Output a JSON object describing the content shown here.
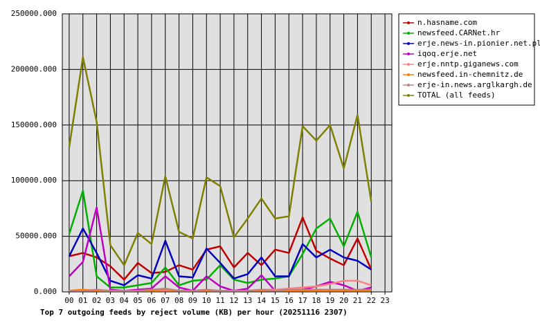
{
  "chart_data": {
    "type": "line",
    "title": "Top 7 outgoing feeds by reject volume (KB) per hour (20251116 2307)",
    "categories": [
      "00",
      "01",
      "02",
      "03",
      "04",
      "05",
      "06",
      "07",
      "08",
      "09",
      "10",
      "11",
      "12",
      "13",
      "14",
      "15",
      "16",
      "17",
      "18",
      "19",
      "20",
      "21",
      "22",
      "23"
    ],
    "ylim": [
      0,
      250000
    ],
    "yticks": [
      {
        "value": 0,
        "label": "0.000"
      },
      {
        "value": 50000,
        "label": "50000.000"
      },
      {
        "value": 100000,
        "label": "100000.000"
      },
      {
        "value": 150000,
        "label": "150000.000"
      },
      {
        "value": 200000,
        "label": "200000.000"
      },
      {
        "value": 250000,
        "label": "250000.000"
      }
    ],
    "grid": true,
    "legend": "right",
    "series": [
      {
        "name": "n.hasname.com",
        "color": "#c00000",
        "values": [
          32000,
          35000,
          31000,
          23000,
          11000,
          26000,
          17000,
          18000,
          24000,
          20000,
          38000,
          41000,
          22000,
          35000,
          24000,
          38000,
          35000,
          67000,
          37000,
          30000,
          24000,
          48000,
          20000,
          null
        ]
      },
      {
        "name": "newsfeed.CARNet.hr",
        "color": "#00b000",
        "values": [
          52000,
          91000,
          14000,
          4000,
          4000,
          6000,
          8000,
          22000,
          6000,
          10000,
          11000,
          24000,
          11000,
          8000,
          11000,
          12000,
          14000,
          34000,
          57000,
          66000,
          41000,
          72000,
          31000,
          null
        ]
      },
      {
        "name": "erje.news-in.pionier.net.pl",
        "color": "#0000c0",
        "values": [
          32000,
          57000,
          35000,
          10000,
          6000,
          15000,
          12000,
          46000,
          14000,
          13000,
          39000,
          26000,
          12000,
          16000,
          31000,
          14000,
          14000,
          43000,
          31000,
          38000,
          31000,
          28000,
          20000,
          null
        ]
      },
      {
        "name": "iqoq.erje.net",
        "color": "#c000c0",
        "values": [
          14000,
          27000,
          76000,
          2000,
          1000,
          2000,
          3000,
          14000,
          4000,
          1000,
          14000,
          5000,
          1000,
          3000,
          15000,
          1000,
          2000,
          2000,
          5000,
          9000,
          6000,
          1000,
          4000,
          null
        ]
      },
      {
        "name": "erje.nntp.giganews.com",
        "color": "#ff8080",
        "values": [
          1000,
          1000,
          1000,
          1000,
          1000,
          1000,
          1000,
          1000,
          1000,
          1000,
          1000,
          1000,
          1000,
          1000,
          2000,
          2000,
          3000,
          4000,
          5000,
          7000,
          10000,
          10000,
          6000,
          null
        ]
      },
      {
        "name": "newsfeed.in-chemnitz.de",
        "color": "#ff8000",
        "values": [
          1000,
          2000,
          1000,
          1000,
          1000,
          1000,
          1000,
          2000,
          1000,
          1000,
          1000,
          1000,
          1000,
          1000,
          1000,
          1000,
          1000,
          1000,
          1000,
          1000,
          1000,
          1000,
          1000,
          null
        ]
      },
      {
        "name": "erje-in.news.arglkargh.de",
        "color": "#c08080",
        "values": [
          1000,
          1000,
          2000,
          1000,
          1000,
          1000,
          2000,
          3000,
          1000,
          1000,
          2000,
          1000,
          1000,
          1000,
          2000,
          1000,
          2000,
          2000,
          2000,
          2000,
          2000,
          2000,
          2000,
          null
        ]
      },
      {
        "name": "TOTAL (all feeds)",
        "color": "#808000",
        "values": [
          130000,
          211000,
          153000,
          42000,
          24000,
          53000,
          43000,
          104000,
          54000,
          48000,
          103000,
          95000,
          49000,
          66000,
          84000,
          66000,
          68000,
          149000,
          136000,
          150000,
          111000,
          159000,
          81000,
          null
        ]
      }
    ]
  }
}
